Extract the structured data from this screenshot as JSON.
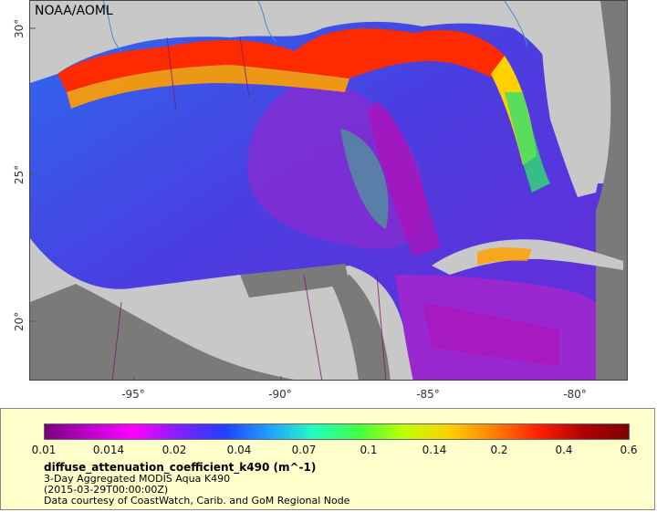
{
  "map": {
    "credit": "NOAA/AOML",
    "lat_ticks": [
      "30°",
      "25°",
      "20°"
    ],
    "lon_ticks": [
      "-95°",
      "-90°",
      "-85°",
      "-80°"
    ],
    "colors": {
      "land": "#c8c8c8",
      "no_data": "#7a7a7a",
      "ocean_deep": "#3a55d8",
      "ocean_purple": "#8a2bd0",
      "ocean_magenta": "#b010b8",
      "coastal_high": "#ff2a00",
      "coastal_mid": "#ffa000",
      "coastal_green": "#30e070",
      "borders": "#7a1a6a",
      "rivers": "#4a88d8"
    }
  },
  "legend": {
    "ticks": [
      "0.01",
      "0.014",
      "0.02",
      "0.04",
      "0.07",
      "0.1",
      "0.14",
      "0.2",
      "0.4",
      "0.6"
    ],
    "variable": "diffuse_attenuation_coefficient_k490 (m^-1)",
    "product": "3-Day Aggregated MODIS Aqua K490",
    "time": "(2015-03-29T00:00:00Z)",
    "courtesy": "Data courtesy of CoastWatch, Carib. and GoM Regional Node",
    "colorbar_stops": [
      "#7a007a",
      "#c000d0",
      "#ff00ff",
      "#8020ff",
      "#2040ff",
      "#20a0ff",
      "#20ffc0",
      "#40ff40",
      "#c0ff00",
      "#ffd000",
      "#ff8000",
      "#ff2000",
      "#b00000",
      "#800000"
    ]
  }
}
